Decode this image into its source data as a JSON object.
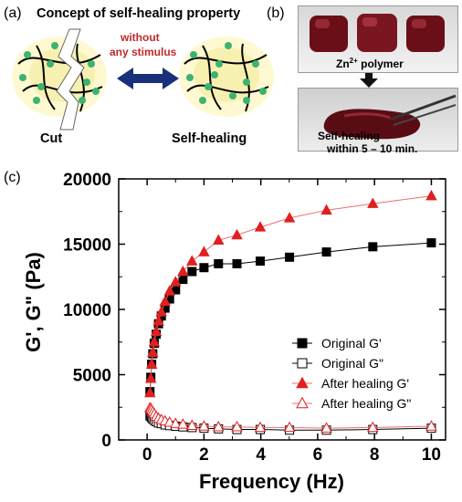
{
  "panel_a": {
    "label": "(a)",
    "title": "Concept of self-healing property",
    "arrow_text_line1": "without",
    "arrow_text_line2": "any stimulus",
    "left_caption": "Cut",
    "right_caption": "Self-healing"
  },
  "panel_b": {
    "label": "(b)",
    "caption_top_prefix": "Zn",
    "caption_top_sup": "2+",
    "caption_top_suffix": " polymer",
    "caption_bottom_line1": "Self-healing",
    "caption_bottom_line2": "within 5 – 10 min."
  },
  "panel_c": {
    "label": "(c)"
  },
  "colors": {
    "red": "#e02020",
    "black": "#000000",
    "green_dot": "#3cb371",
    "blue_arrow": "#1a2f7a"
  },
  "chart_data": {
    "type": "scatter",
    "xlabel": "Frequency (Hz)",
    "ylabel": "G', G\" (Pa)",
    "xlim": [
      -1,
      10.5
    ],
    "ylim": [
      0,
      20000
    ],
    "xticks": [
      0,
      2,
      4,
      6,
      8,
      10
    ],
    "yticks": [
      0,
      5000,
      10000,
      15000,
      20000
    ],
    "legend_position": "center-right",
    "series": [
      {
        "name": "Original G'",
        "marker": "square",
        "filled": true,
        "color": "#000000",
        "x": [
          0.1,
          0.13,
          0.16,
          0.2,
          0.25,
          0.32,
          0.4,
          0.5,
          0.63,
          0.79,
          1.0,
          1.26,
          1.58,
          2.0,
          2.51,
          3.16,
          3.98,
          5.01,
          6.31,
          7.94,
          10.0
        ],
        "y": [
          3700,
          4800,
          5800,
          6600,
          7400,
          8100,
          8900,
          9500,
          10100,
          10800,
          11500,
          12300,
          12900,
          13200,
          13500,
          13500,
          13700,
          14000,
          14400,
          14800,
          15100
        ]
      },
      {
        "name": "Original G\"",
        "marker": "square",
        "filled": false,
        "color": "#000000",
        "x": [
          0.1,
          0.13,
          0.16,
          0.2,
          0.25,
          0.32,
          0.4,
          0.5,
          0.63,
          0.79,
          1.0,
          1.26,
          1.58,
          2.0,
          2.51,
          3.16,
          3.98,
          5.01,
          6.31,
          7.94,
          10.0
        ],
        "y": [
          1850,
          1800,
          1700,
          1600,
          1500,
          1400,
          1300,
          1250,
          1150,
          1100,
          1050,
          1000,
          950,
          900,
          850,
          800,
          800,
          750,
          750,
          800,
          900
        ]
      },
      {
        "name": "After healing G'",
        "marker": "triangle",
        "filled": true,
        "color": "#e02020",
        "x": [
          0.1,
          0.13,
          0.16,
          0.2,
          0.25,
          0.32,
          0.4,
          0.5,
          0.63,
          0.79,
          1.0,
          1.26,
          1.58,
          2.0,
          2.51,
          3.16,
          3.98,
          5.01,
          6.31,
          7.94,
          10.0
        ],
        "y": [
          3600,
          4700,
          5800,
          6700,
          7500,
          8300,
          9100,
          9800,
          10600,
          11400,
          12100,
          12900,
          13700,
          14400,
          15300,
          15700,
          16300,
          17000,
          17600,
          18100,
          18700
        ]
      },
      {
        "name": "After healing G\"",
        "marker": "triangle",
        "filled": false,
        "color": "#e02020",
        "x": [
          0.1,
          0.13,
          0.16,
          0.2,
          0.25,
          0.32,
          0.4,
          0.5,
          0.63,
          0.79,
          1.0,
          1.26,
          1.58,
          2.0,
          2.51,
          3.16,
          3.98,
          5.01,
          6.31,
          7.94,
          10.0
        ],
        "y": [
          2450,
          2400,
          2300,
          2150,
          2000,
          1800,
          1650,
          1550,
          1450,
          1350,
          1250,
          1200,
          1100,
          1050,
          1000,
          1000,
          950,
          950,
          900,
          950,
          1050
        ]
      }
    ]
  }
}
